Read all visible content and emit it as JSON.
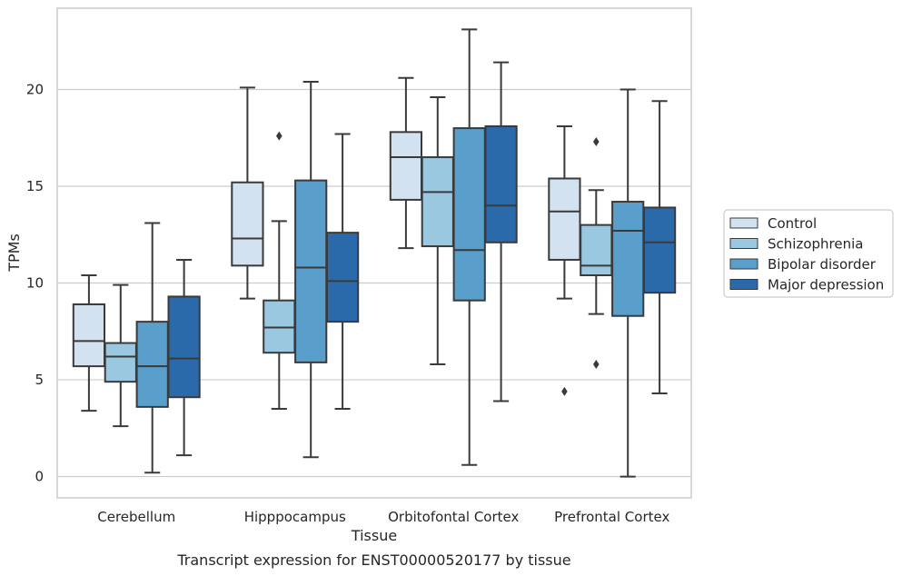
{
  "caption": "Transcript expression for ENST00000520177 by tissue",
  "chart_data": {
    "type": "box",
    "xlabel": "Tissue",
    "ylabel": "TPMs",
    "ylim": [
      -1.1,
      24.2
    ],
    "yticks": [
      0,
      5,
      10,
      15,
      20
    ],
    "grid": "horizontal",
    "legend_position": "right",
    "categories": [
      "Cerebellum",
      "Hipppocampus",
      "Orbitofontal Cortex",
      "Prefrontal Cortex"
    ],
    "series": [
      {
        "name": "Control",
        "color": "#d3e2f1",
        "boxes": [
          {
            "whisker_low": 3.4,
            "q1": 5.7,
            "median": 7.0,
            "q3": 8.9,
            "whisker_high": 10.4,
            "outliers": []
          },
          {
            "whisker_low": 9.2,
            "q1": 10.9,
            "median": 12.3,
            "q3": 15.2,
            "whisker_high": 20.1,
            "outliers": []
          },
          {
            "whisker_low": 11.8,
            "q1": 14.3,
            "median": 16.5,
            "q3": 17.8,
            "whisker_high": 20.6,
            "outliers": []
          },
          {
            "whisker_low": 9.2,
            "q1": 11.2,
            "median": 13.7,
            "q3": 15.4,
            "whisker_high": 18.1,
            "outliers": [
              4.4
            ]
          }
        ]
      },
      {
        "name": "Schizophrenia",
        "color": "#9ac8e0",
        "boxes": [
          {
            "whisker_low": 2.6,
            "q1": 4.9,
            "median": 6.2,
            "q3": 6.9,
            "whisker_high": 9.9,
            "outliers": []
          },
          {
            "whisker_low": 3.5,
            "q1": 6.4,
            "median": 7.7,
            "q3": 9.1,
            "whisker_high": 13.2,
            "outliers": [
              17.6
            ]
          },
          {
            "whisker_low": 5.8,
            "q1": 11.9,
            "median": 14.7,
            "q3": 16.5,
            "whisker_high": 19.6,
            "outliers": []
          },
          {
            "whisker_low": 8.4,
            "q1": 10.4,
            "median": 10.9,
            "q3": 13.0,
            "whisker_high": 14.8,
            "outliers": [
              5.8,
              17.3
            ]
          }
        ]
      },
      {
        "name": "Bipolar disorder",
        "color": "#5a9fcc",
        "boxes": [
          {
            "whisker_low": 0.2,
            "q1": 3.6,
            "median": 5.7,
            "q3": 8.0,
            "whisker_high": 13.1,
            "outliers": []
          },
          {
            "whisker_low": 1.0,
            "q1": 5.9,
            "median": 10.8,
            "q3": 15.3,
            "whisker_high": 20.4,
            "outliers": []
          },
          {
            "whisker_low": 0.6,
            "q1": 9.1,
            "median": 11.7,
            "q3": 18.0,
            "whisker_high": 23.1,
            "outliers": []
          },
          {
            "whisker_low": 0.0,
            "q1": 8.3,
            "median": 12.7,
            "q3": 14.2,
            "whisker_high": 20.0,
            "outliers": []
          }
        ]
      },
      {
        "name": "Major depression",
        "color": "#2a6aab",
        "boxes": [
          {
            "whisker_low": 1.1,
            "q1": 4.1,
            "median": 6.1,
            "q3": 9.3,
            "whisker_high": 11.2,
            "outliers": []
          },
          {
            "whisker_low": 3.5,
            "q1": 8.0,
            "median": 10.1,
            "q3": 12.6,
            "whisker_high": 17.7,
            "outliers": []
          },
          {
            "whisker_low": 3.9,
            "q1": 12.1,
            "median": 14.0,
            "q3": 18.1,
            "whisker_high": 21.4,
            "outliers": []
          },
          {
            "whisker_low": 4.3,
            "q1": 9.5,
            "median": 12.1,
            "q3": 13.9,
            "whisker_high": 19.4,
            "outliers": []
          }
        ]
      }
    ]
  }
}
